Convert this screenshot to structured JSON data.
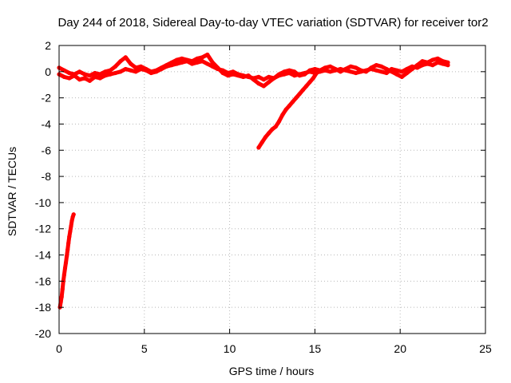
{
  "chart_data": {
    "type": "scatter",
    "title": "Day 244 of 2018, Sidereal Day-to-day VTEC variation (SDTVAR) for receiver tor2",
    "xlabel": "GPS time / hours",
    "ylabel": "SDTVAR / TECUs",
    "xlim": [
      0,
      25
    ],
    "ylim": [
      -20,
      2
    ],
    "xticks": [
      0,
      5,
      10,
      15,
      20,
      25
    ],
    "yticks": [
      -20,
      -18,
      -16,
      -14,
      -12,
      -10,
      -8,
      -6,
      -4,
      -2,
      0,
      2
    ],
    "grid": true,
    "legend": "none",
    "color": "#ff0000",
    "series": [
      {
        "x": [
          0.05,
          0.1,
          0.15,
          0.2,
          0.25,
          0.3,
          0.35,
          0.4,
          0.45,
          0.5,
          0.55,
          0.6,
          0.65,
          0.7,
          0.75,
          0.8,
          0.85
        ],
        "y": [
          -18.0,
          -17.6,
          -17.2,
          -16.6,
          -16.0,
          -15.5,
          -15.0,
          -14.6,
          -14.1,
          -13.6,
          -13.1,
          -12.6,
          -12.2,
          -11.8,
          -11.4,
          -11.1,
          -10.9
        ]
      },
      {
        "x": [
          11.7,
          11.9,
          12.1,
          12.3,
          12.5,
          12.7,
          12.9,
          13.1,
          13.3,
          13.5,
          13.7,
          13.9,
          14.1,
          14.3,
          14.5,
          14.7,
          14.9,
          15.1
        ],
        "y": [
          -5.8,
          -5.4,
          -5.0,
          -4.7,
          -4.4,
          -4.2,
          -3.8,
          -3.3,
          -2.9,
          -2.6,
          -2.3,
          -2.0,
          -1.7,
          -1.4,
          -1.1,
          -0.8,
          -0.5,
          -0.1
        ]
      },
      {
        "x": [
          0.0,
          0.3,
          0.6,
          0.9,
          1.2,
          1.5,
          1.8,
          2.1,
          2.4,
          2.7,
          3.0,
          3.3,
          3.6,
          3.9,
          4.2,
          4.5,
          4.8,
          5.1,
          5.4,
          5.7,
          6.0,
          6.3,
          6.6,
          6.9,
          7.2,
          7.5,
          7.8,
          8.1,
          8.4,
          8.7,
          9.0,
          9.3,
          9.6,
          9.9,
          10.2,
          10.5,
          10.8,
          11.1,
          11.4,
          11.7,
          12.0,
          12.3,
          12.6,
          12.9,
          13.2,
          13.5,
          13.8,
          14.1,
          14.4,
          14.7,
          15.0,
          15.3,
          15.6,
          15.9,
          16.2,
          16.5,
          16.8,
          17.1,
          17.4,
          17.7,
          18.0,
          18.3,
          18.6,
          18.9,
          19.2,
          19.5,
          19.8,
          20.1,
          20.4,
          20.7,
          21.0,
          21.3,
          21.6,
          21.9,
          22.2,
          22.5,
          22.8
        ],
        "y": [
          -0.2,
          -0.4,
          -0.5,
          -0.3,
          -0.6,
          -0.5,
          -0.7,
          -0.4,
          -0.5,
          -0.3,
          -0.2,
          -0.1,
          0.0,
          0.2,
          0.1,
          0.0,
          0.2,
          0.1,
          -0.1,
          0.0,
          0.2,
          0.4,
          0.5,
          0.6,
          0.7,
          0.8,
          0.6,
          0.7,
          0.8,
          0.6,
          0.4,
          0.2,
          0.1,
          -0.1,
          0.0,
          -0.2,
          -0.3,
          -0.4,
          -0.5,
          -0.4,
          -0.6,
          -0.4,
          -0.5,
          -0.3,
          -0.2,
          -0.1,
          -0.3,
          -0.2,
          -0.1,
          0.0,
          -0.1,
          0.0,
          0.1,
          0.0,
          0.1,
          0.2,
          0.1,
          0.0,
          -0.1,
          0.0,
          0.1,
          0.2,
          0.1,
          0.0,
          -0.1,
          0.2,
          0.1,
          0.0,
          0.2,
          0.4,
          0.3,
          0.5,
          0.6,
          0.5,
          0.7,
          0.6,
          0.5
        ]
      },
      {
        "x": [
          0.0,
          0.3,
          0.6,
          0.9,
          1.2,
          1.5,
          1.8,
          2.1,
          2.4,
          2.7,
          3.0,
          3.3,
          3.6,
          3.9,
          4.2,
          4.5,
          4.8,
          5.1,
          5.4,
          5.7,
          6.0,
          6.3,
          6.6,
          6.9,
          7.2,
          7.5,
          7.8,
          8.1,
          8.4,
          8.7,
          9.0,
          9.3,
          9.6,
          9.9,
          10.2,
          10.5,
          10.8,
          11.1,
          11.4,
          11.7,
          12.0,
          12.3,
          12.6,
          12.9,
          13.2,
          13.5,
          13.8,
          14.1,
          14.4,
          14.7,
          15.0,
          15.3,
          15.6,
          15.9,
          16.2,
          16.5,
          16.8,
          17.1,
          17.4,
          17.7,
          18.0,
          18.3,
          18.6,
          18.9,
          19.2,
          19.5,
          19.8,
          20.1,
          20.4,
          20.7,
          21.0,
          21.3,
          21.6,
          21.9,
          22.2,
          22.5,
          22.8
        ],
        "y": [
          0.3,
          0.1,
          -0.1,
          -0.2,
          0.0,
          -0.2,
          -0.3,
          -0.1,
          -0.2,
          0.0,
          0.1,
          0.4,
          0.8,
          1.1,
          0.6,
          0.3,
          0.4,
          0.2,
          0.0,
          0.1,
          0.3,
          0.5,
          0.7,
          0.9,
          1.0,
          0.9,
          0.8,
          1.0,
          1.1,
          1.3,
          0.7,
          0.3,
          -0.1,
          -0.3,
          -0.2,
          -0.3,
          -0.4,
          -0.3,
          -0.6,
          -0.9,
          -1.1,
          -0.8,
          -0.5,
          -0.2,
          0.0,
          0.1,
          0.0,
          -0.3,
          -0.2,
          0.1,
          0.2,
          0.1,
          0.3,
          0.4,
          0.2,
          0.0,
          0.2,
          0.4,
          0.3,
          0.1,
          0.0,
          0.3,
          0.5,
          0.4,
          0.2,
          0.0,
          -0.2,
          -0.4,
          -0.1,
          0.2,
          0.5,
          0.8,
          0.7,
          0.9,
          1.0,
          0.8,
          0.7
        ]
      }
    ]
  }
}
